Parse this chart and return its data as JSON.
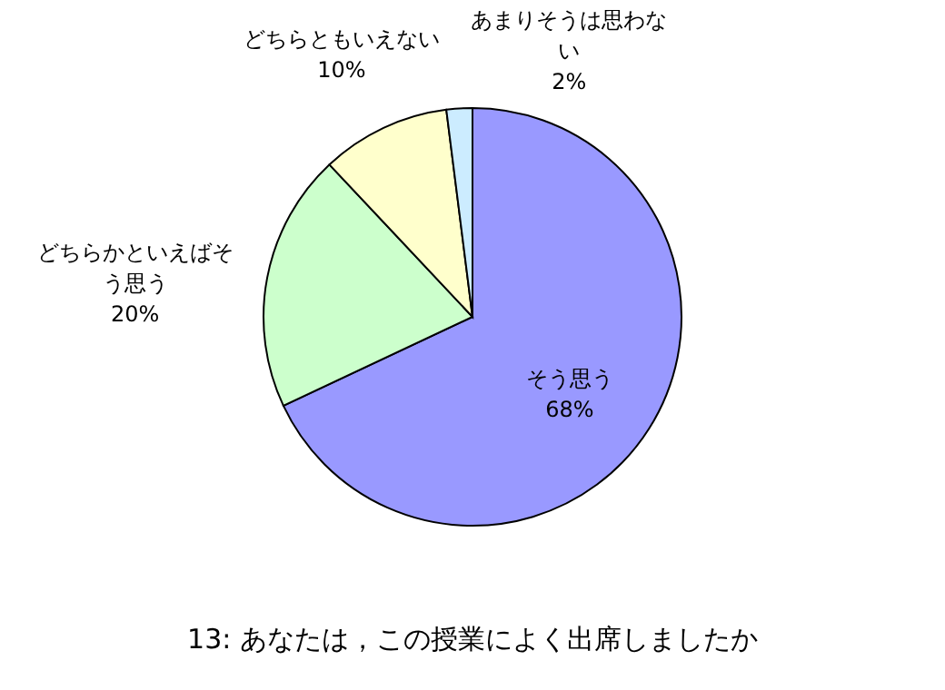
{
  "chart_data": {
    "type": "pie",
    "title": "13: あなたは，この授業によく出席しましたか",
    "categories": [
      "そう思う",
      "どちらかといえばそう思う",
      "どちらともいえない",
      "あまりそうは思わない"
    ],
    "values": [
      68,
      20,
      10,
      2
    ],
    "colors": [
      "#9999ff",
      "#ccffcc",
      "#ffffcc",
      "#ccecff"
    ],
    "value_labels": [
      "68%",
      "20%",
      "10%",
      "2%"
    ],
    "legend": false
  }
}
